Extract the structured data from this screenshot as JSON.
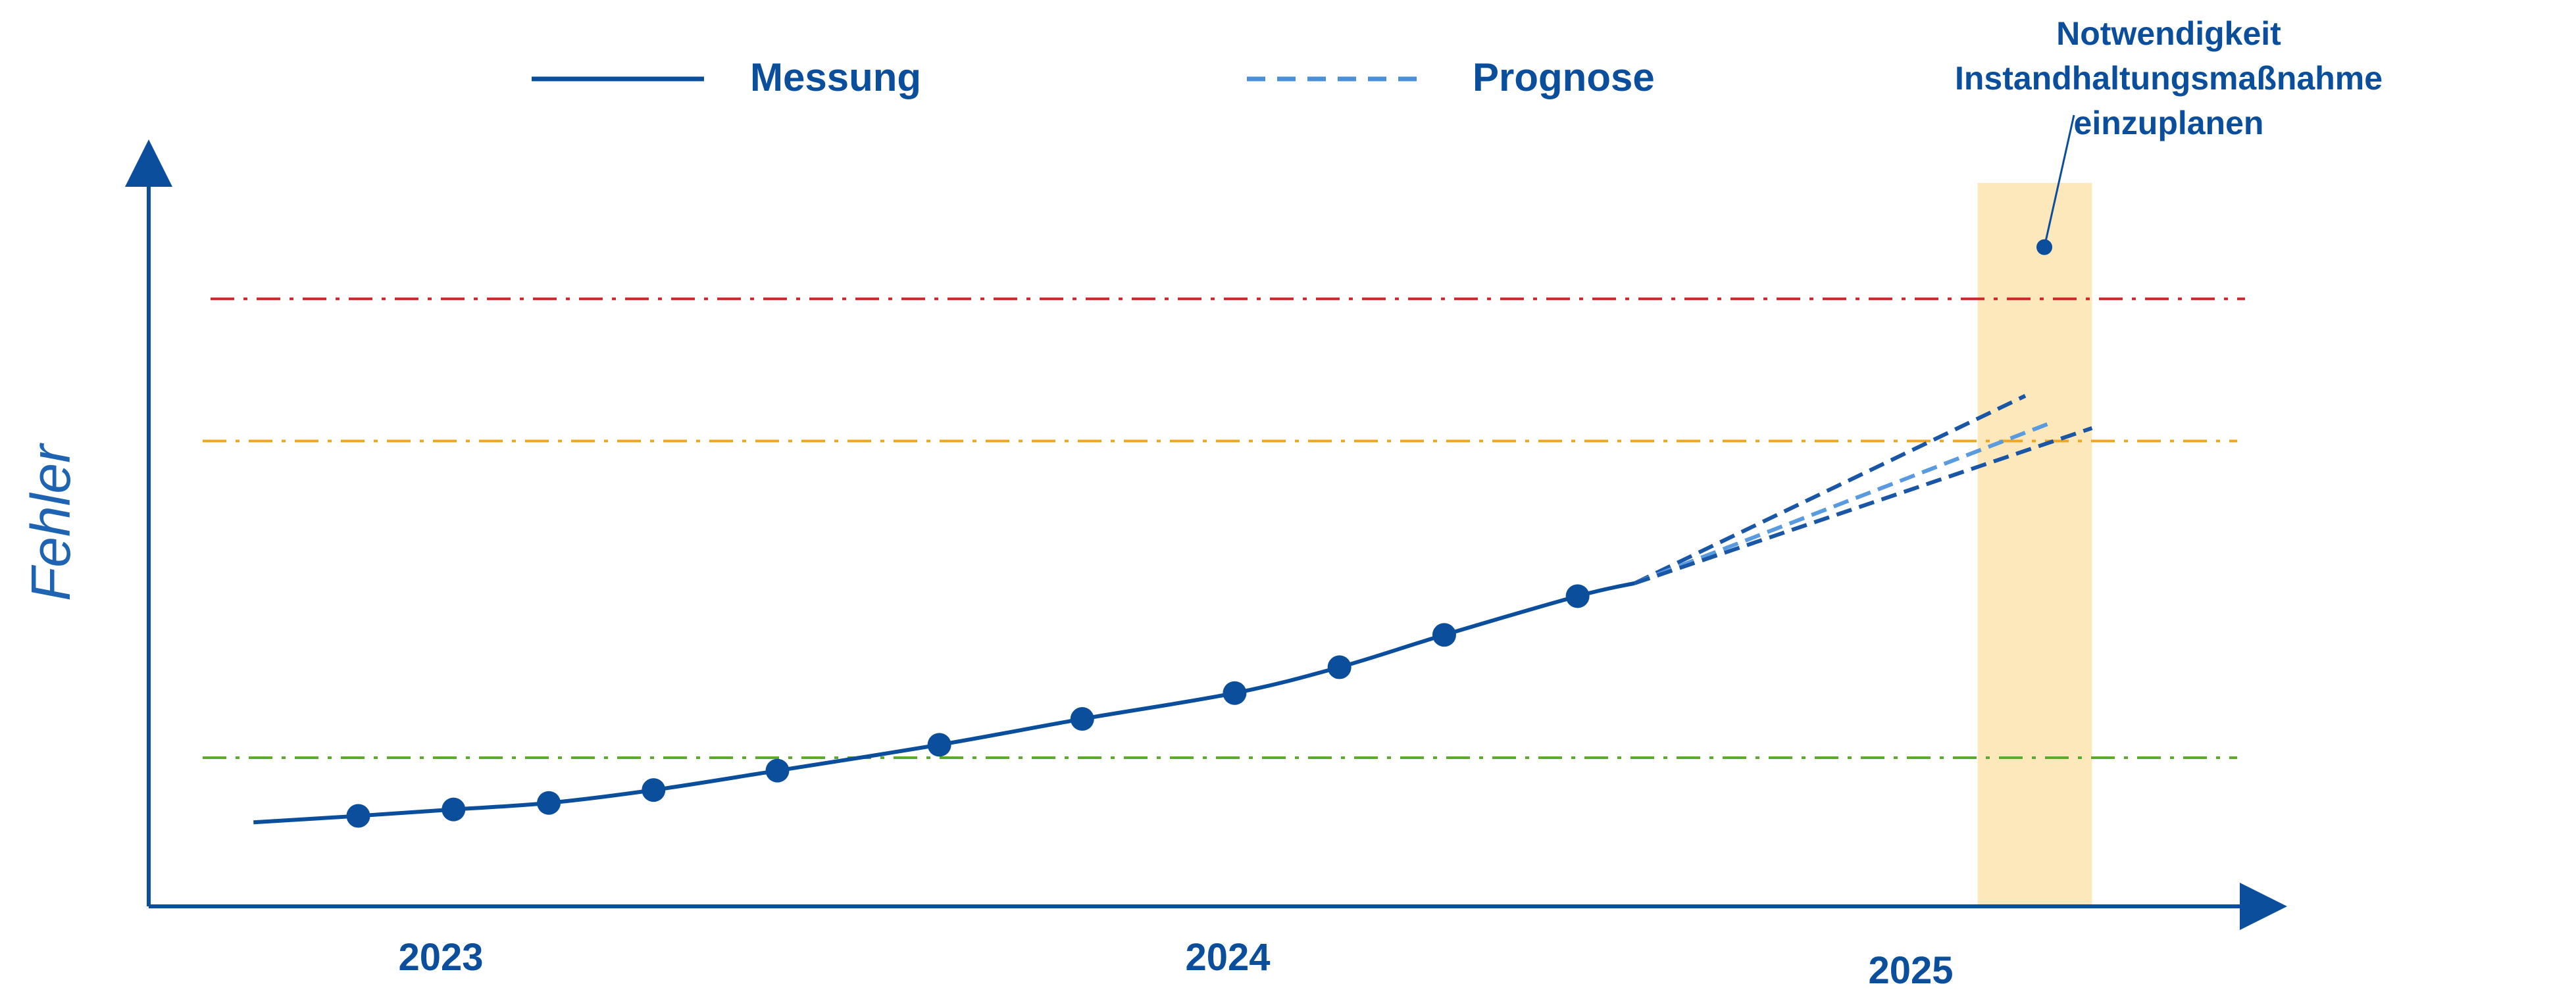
{
  "chart_data": {
    "type": "line",
    "title": "",
    "xlabel": "",
    "ylabel": "Fehler",
    "x_ticks": [
      "2023",
      "2024",
      "2025"
    ],
    "legend": {
      "placement": "top-center",
      "entries": [
        {
          "label": "Messung",
          "style": "solid",
          "color": "#0b4f9c"
        },
        {
          "label": "Prognose",
          "style": "dashed",
          "color": "#4a8fd8"
        }
      ]
    },
    "measurements": {
      "name": "Messung",
      "color": "#0b4f9c",
      "x": [
        2023.0,
        2023.1,
        2023.2,
        2023.31,
        2023.44,
        2023.61,
        2023.76,
        2023.92,
        2024.03,
        2024.14,
        2024.28
      ],
      "y": [
        0.14,
        0.15,
        0.16,
        0.18,
        0.21,
        0.25,
        0.29,
        0.33,
        0.37,
        0.42,
        0.48
      ]
    },
    "curve": {
      "x_start": 2022.89,
      "y_start": 0.13
    },
    "forecast": {
      "name": "Prognose",
      "x_start": 2024.34,
      "y_start": 0.5,
      "lines": [
        {
          "x_end": 2024.75,
          "y_end": 0.79,
          "color": "#1a56a6"
        },
        {
          "x_end": 2024.78,
          "y_end": 0.75,
          "color": "#5a9be0"
        },
        {
          "x_end": 2024.82,
          "y_end": 0.74,
          "color": "#1a56a6"
        }
      ]
    },
    "thresholds": [
      {
        "y": 0.94,
        "color": "#d42027",
        "style": "dash-dot"
      },
      {
        "y": 0.72,
        "color": "#f0a51c",
        "style": "dash-dot"
      },
      {
        "y": 0.23,
        "color": "#5aaa2e",
        "style": "dash-dot"
      }
    ],
    "highlight_band": {
      "x_from": 2024.7,
      "x_to": 2024.82,
      "color": "#fde8bc"
    },
    "annotation": {
      "lines": [
        "Notwendigkeit",
        "Instandhaltungsmaßnahme",
        "einzuplanen"
      ],
      "point": {
        "x": 2024.77,
        "y": 1.02
      },
      "color": "#0b4f9c"
    },
    "xlim": [
      2022.78,
      2025.0
    ],
    "ylim": [
      0,
      1.15
    ],
    "grid": false
  }
}
